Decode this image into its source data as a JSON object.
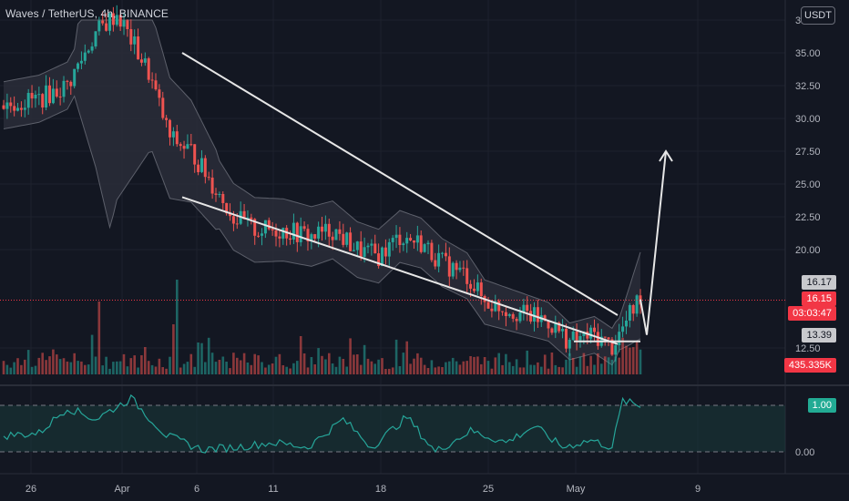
{
  "header": {
    "title": "Waves / TetherUS, 4h, BINANCE",
    "currency_button": "USDT"
  },
  "colors": {
    "background": "#131722",
    "up": "#26a69a",
    "down": "#ef5350",
    "grid": "#1e222d",
    "axis_text": "#b2b5be",
    "band_fill": "#2a2d38",
    "band_line": "#5d606b",
    "rsi_line": "#26a69a",
    "rsi_fill": "#1a3a3a",
    "price_line": "#f23645",
    "annotation": "#e6e6e6"
  },
  "chart_data": [
    {
      "type": "candlestick",
      "x_tick_labels": [
        "26",
        "Apr",
        "6",
        "11",
        "18",
        "25",
        "May",
        "9"
      ],
      "y_tick_labels": [
        "37.50",
        "35.00",
        "32.50",
        "30.00",
        "27.50",
        "25.00",
        "22.50",
        "20.00",
        "12.50"
      ],
      "ylim": [
        12.5,
        37.5
      ],
      "anchors": [
        {
          "t": 0,
          "p": 31.0
        },
        {
          "t": 10,
          "p": 31.5
        },
        {
          "t": 18,
          "p": 32.5
        },
        {
          "t": 22,
          "p": 34.5
        },
        {
          "t": 26,
          "p": 36.5
        },
        {
          "t": 32,
          "p": 38.0
        },
        {
          "t": 36,
          "p": 36.0
        },
        {
          "t": 41,
          "p": 33.5
        },
        {
          "t": 47,
          "p": 28.5
        },
        {
          "t": 53,
          "p": 27.5
        },
        {
          "t": 59,
          "p": 25.0
        },
        {
          "t": 65,
          "p": 22.5
        },
        {
          "t": 71,
          "p": 21.5
        },
        {
          "t": 79,
          "p": 21.5
        },
        {
          "t": 87,
          "p": 21.0
        },
        {
          "t": 93,
          "p": 21.5
        },
        {
          "t": 100,
          "p": 20.0
        },
        {
          "t": 106,
          "p": 19.5
        },
        {
          "t": 112,
          "p": 21.0
        },
        {
          "t": 118,
          "p": 20.5
        },
        {
          "t": 124,
          "p": 19.0
        },
        {
          "t": 131,
          "p": 18.0
        },
        {
          "t": 136,
          "p": 16.0
        },
        {
          "t": 142,
          "p": 15.5
        },
        {
          "t": 148,
          "p": 15.0
        },
        {
          "t": 154,
          "p": 14.5
        },
        {
          "t": 160,
          "p": 13.0
        },
        {
          "t": 167,
          "p": 13.5
        },
        {
          "t": 172,
          "p": 12.6
        },
        {
          "t": 176,
          "p": 14.5
        },
        {
          "t": 180,
          "p": 16.5
        }
      ],
      "last_price_line": 16.15,
      "price_labels": [
        {
          "id": "high",
          "value": "16.17",
          "style": "grey",
          "price": 16.17
        },
        {
          "id": "last",
          "value": "16.15",
          "style": "red",
          "price": 16.15
        },
        {
          "id": "countdown",
          "value": "03:03:47",
          "style": "red",
          "price": 16.15
        },
        {
          "id": "low",
          "value": "13.39",
          "style": "grey",
          "price": 13.39
        },
        {
          "id": "volume",
          "value": "435.335K",
          "style": "red",
          "price": 12.5
        }
      ],
      "annotations": {
        "wedge_upper": [
          [
            35.0,
            0.0
          ],
          [
            15.0,
            1.0
          ]
        ],
        "wedge_lower": [
          [
            24.0,
            0.0
          ],
          [
            12.8,
            1.0
          ]
        ],
        "projection_arrow": [
          [
            16.2,
            0.0
          ],
          [
            13.5,
            0.25
          ],
          [
            27.5,
            1.0
          ]
        ]
      }
    },
    {
      "type": "line",
      "name": "",
      "y_tick_labels": [
        "1.00",
        "0.00"
      ],
      "ylim": [
        0,
        1
      ],
      "last_value": "1.00",
      "anchors": [
        {
          "t": 0,
          "v": 0.35
        },
        {
          "t": 10,
          "v": 0.4
        },
        {
          "t": 18,
          "v": 0.95
        },
        {
          "t": 26,
          "v": 0.7
        },
        {
          "t": 36,
          "v": 1.15
        },
        {
          "t": 46,
          "v": 0.35
        },
        {
          "t": 56,
          "v": 0.05
        },
        {
          "t": 66,
          "v": 0.1
        },
        {
          "t": 76,
          "v": 0.2
        },
        {
          "t": 86,
          "v": 0.1
        },
        {
          "t": 96,
          "v": 0.7
        },
        {
          "t": 104,
          "v": 0.1
        },
        {
          "t": 114,
          "v": 0.75
        },
        {
          "t": 122,
          "v": 0.0
        },
        {
          "t": 132,
          "v": 0.45
        },
        {
          "t": 142,
          "v": 0.2
        },
        {
          "t": 150,
          "v": 0.55
        },
        {
          "t": 158,
          "v": 0.1
        },
        {
          "t": 166,
          "v": 0.25
        },
        {
          "t": 172,
          "v": 0.1
        },
        {
          "t": 175,
          "v": 1.1
        },
        {
          "t": 180,
          "v": 0.98
        }
      ]
    }
  ]
}
